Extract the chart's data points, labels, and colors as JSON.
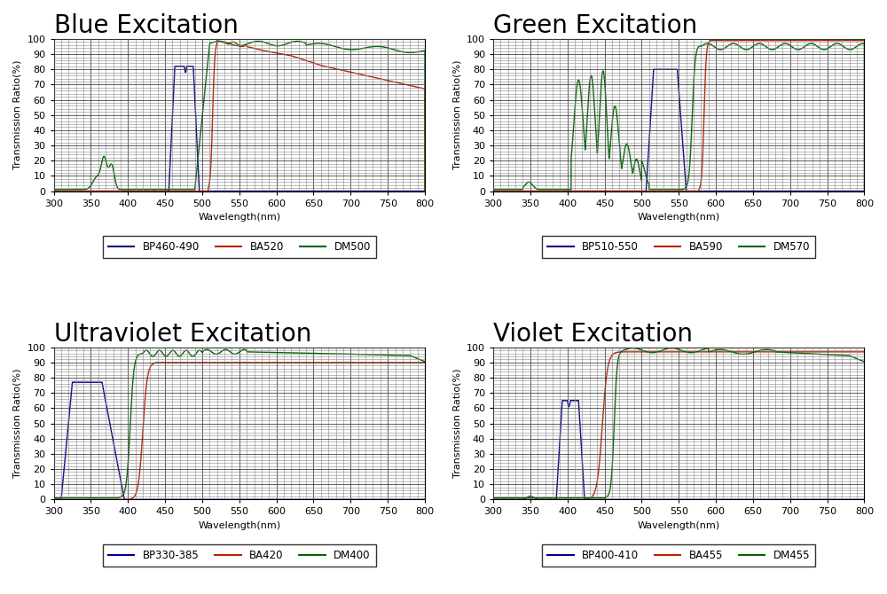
{
  "panels": [
    {
      "title": "Blue Excitation",
      "legend_labels": [
        "BP460-490",
        "BA520",
        "DM500"
      ],
      "legend_colors": [
        "#00008B",
        "#BB2200",
        "#006600"
      ],
      "xlim": [
        300,
        800
      ],
      "ylim": [
        0,
        100
      ],
      "xticks": [
        300,
        350,
        400,
        450,
        500,
        550,
        600,
        650,
        700,
        750,
        800
      ],
      "yticks": [
        0,
        10,
        20,
        30,
        40,
        50,
        60,
        70,
        80,
        90,
        100
      ]
    },
    {
      "title": "Green Excitation",
      "legend_labels": [
        "BP510-550",
        "BA590",
        "DM570"
      ],
      "legend_colors": [
        "#00008B",
        "#BB2200",
        "#006600"
      ],
      "xlim": [
        300,
        800
      ],
      "ylim": [
        0,
        100
      ],
      "xticks": [
        300,
        350,
        400,
        450,
        500,
        550,
        600,
        650,
        700,
        750,
        800
      ],
      "yticks": [
        0,
        10,
        20,
        30,
        40,
        50,
        60,
        70,
        80,
        90,
        100
      ]
    },
    {
      "title": "Ultraviolet Excitation",
      "legend_labels": [
        "BP330-385",
        "BA420",
        "DM400"
      ],
      "legend_colors": [
        "#00008B",
        "#BB2200",
        "#006600"
      ],
      "xlim": [
        300,
        800
      ],
      "ylim": [
        0,
        100
      ],
      "xticks": [
        300,
        350,
        400,
        450,
        500,
        550,
        600,
        650,
        700,
        750,
        800
      ],
      "yticks": [
        0,
        10,
        20,
        30,
        40,
        50,
        60,
        70,
        80,
        90,
        100
      ]
    },
    {
      "title": "Violet Excitation",
      "legend_labels": [
        "BP400-410",
        "BA455",
        "DM455"
      ],
      "legend_colors": [
        "#00008B",
        "#BB2200",
        "#006600"
      ],
      "xlim": [
        300,
        800
      ],
      "ylim": [
        0,
        100
      ],
      "xticks": [
        300,
        350,
        400,
        450,
        500,
        550,
        600,
        650,
        700,
        750,
        800
      ],
      "yticks": [
        0,
        10,
        20,
        30,
        40,
        50,
        60,
        70,
        80,
        90,
        100
      ]
    }
  ],
  "xlabel": "Wavelength(nm)",
  "ylabel": "Transmission Ratio(%)",
  "background_color": "#ffffff",
  "title_fontsize": 20,
  "axis_fontsize": 8,
  "label_fontsize": 8
}
